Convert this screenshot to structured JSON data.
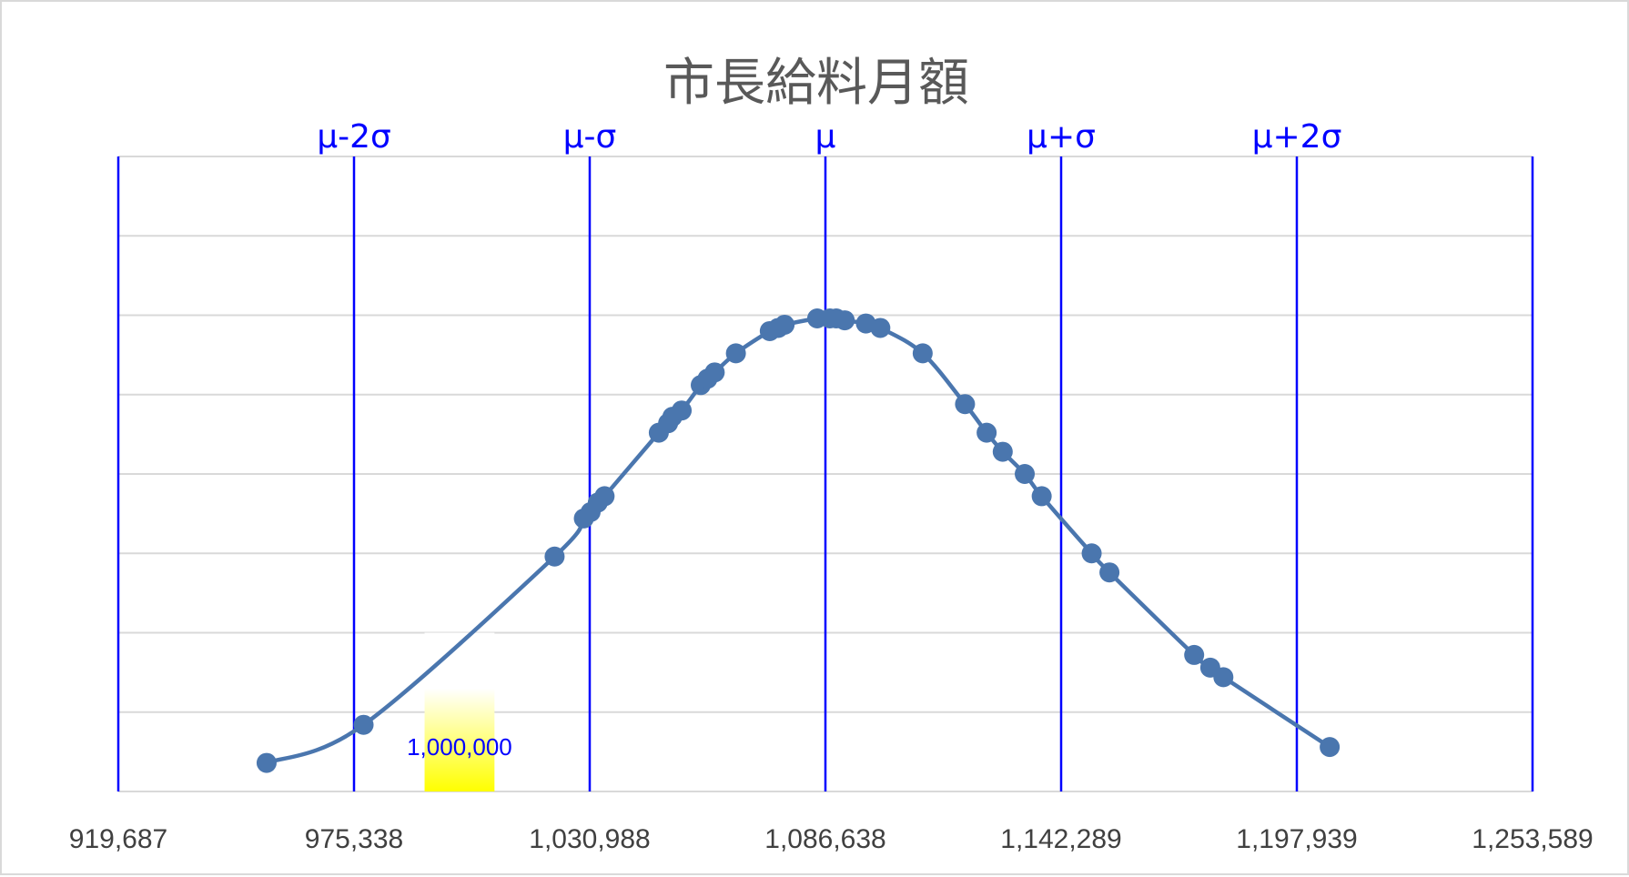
{
  "chart_data": {
    "type": "scatter",
    "title": "市長給料月額",
    "xlabel": "",
    "ylabel": "",
    "xlim": [
      919687,
      1253589
    ],
    "ylim": [
      0,
      1
    ],
    "x_ticks": [
      "919,687",
      "975,338",
      "1,030,988",
      "1,086,638",
      "1,142,289",
      "1,197,939",
      "1,253,589"
    ],
    "y_grid_count": 8,
    "grid": true,
    "legend": "none",
    "colors": {
      "curve": "#4a76ae",
      "points": "#4a76ae",
      "sigma_lines": "#0000ff",
      "grid": "#d9d9d9"
    },
    "sigma_lines": [
      {
        "label": "μ-2σ",
        "x": 975338
      },
      {
        "label": "μ-σ",
        "x": 1030988
      },
      {
        "label": "μ",
        "x": 1086638
      },
      {
        "label": "μ+σ",
        "x": 1142289
      },
      {
        "label": "μ+2σ",
        "x": 1197939
      }
    ],
    "highlight": {
      "label": "1,000,000",
      "x_from": 992000,
      "x_to": 1008500,
      "top": 0.25,
      "colors": [
        "#ffffff",
        "#ffff00"
      ]
    },
    "series": [
      {
        "points": [
          [
            954700,
            0.045
          ],
          [
            977600,
            0.105
          ],
          [
            1022700,
            0.37
          ],
          [
            1029600,
            0.43
          ],
          [
            1031200,
            0.44
          ],
          [
            1032900,
            0.455
          ],
          [
            1034500,
            0.465
          ],
          [
            1047300,
            0.565
          ],
          [
            1049500,
            0.58
          ],
          [
            1050500,
            0.59
          ],
          [
            1052700,
            0.6
          ],
          [
            1057200,
            0.64
          ],
          [
            1058800,
            0.65
          ],
          [
            1060500,
            0.66
          ],
          [
            1065500,
            0.69
          ],
          [
            1073500,
            0.725
          ],
          [
            1075500,
            0.73
          ],
          [
            1077000,
            0.735
          ],
          [
            1084700,
            0.745
          ],
          [
            1087700,
            0.745
          ],
          [
            1089200,
            0.745
          ],
          [
            1091200,
            0.742
          ],
          [
            1096200,
            0.737
          ],
          [
            1099600,
            0.73
          ],
          [
            1109600,
            0.69
          ],
          [
            1119600,
            0.61
          ],
          [
            1124700,
            0.565
          ],
          [
            1128500,
            0.535
          ],
          [
            1133700,
            0.5
          ],
          [
            1137700,
            0.465
          ],
          [
            1149500,
            0.375
          ],
          [
            1153700,
            0.345
          ],
          [
            1173700,
            0.215
          ],
          [
            1177500,
            0.195
          ],
          [
            1180600,
            0.18
          ],
          [
            1205700,
            0.07
          ]
        ]
      }
    ]
  }
}
